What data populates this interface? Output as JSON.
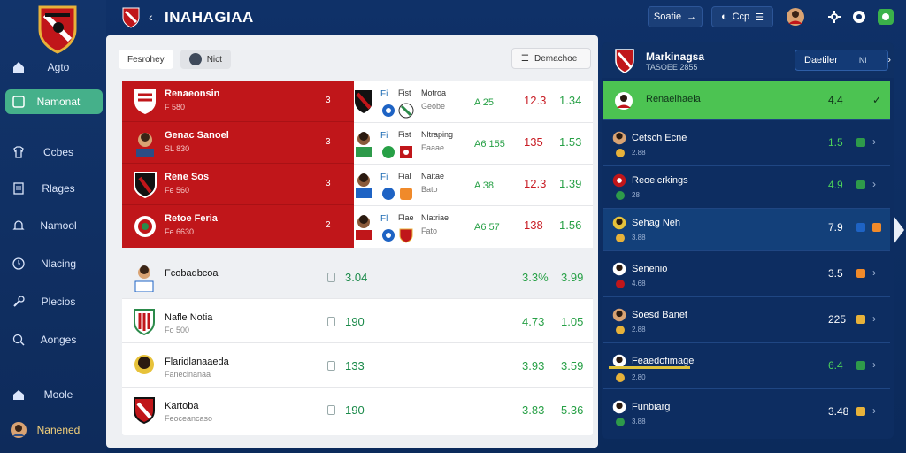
{
  "app": {
    "title": "INAHAGIAA",
    "brand": "Agto"
  },
  "sidebar": {
    "items": [
      {
        "label": "Agto",
        "icon": "home-icon"
      },
      {
        "label": "Namonat",
        "icon": "chart-icon",
        "active": true
      },
      {
        "label": "Ccbes",
        "icon": "shirt-icon"
      },
      {
        "label": "Rlages",
        "icon": "doc-icon"
      },
      {
        "label": "Namool",
        "icon": "bell-icon"
      },
      {
        "label": "Nlacing",
        "icon": "clock-icon"
      },
      {
        "label": "Plecios",
        "icon": "wrench-icon"
      },
      {
        "label": "Aonges",
        "icon": "search-icon"
      },
      {
        "label": "Moole",
        "icon": "house-icon"
      },
      {
        "label": "Nanened",
        "icon": "avatar-icon"
      }
    ]
  },
  "topbar": {
    "search_label": "Soatie",
    "filter_label": "Ccp"
  },
  "main": {
    "filter_a": "Fesrohey",
    "filter_b": "Nict",
    "filter_c": "Demachoe",
    "red_rows": [
      {
        "name": "Renaeonsin",
        "sub": "F 580",
        "num": "3"
      },
      {
        "name": "Genac Sanoel",
        "sub": "SL 830",
        "num": "3"
      },
      {
        "name": "Rene Sos",
        "sub": "Fe 560",
        "num": "3"
      },
      {
        "name": "Retoe Feria",
        "sub": "Fe 6630",
        "num": "2"
      }
    ],
    "mid_rows": [
      {
        "a": "Fi",
        "b": "Fist",
        "c": "Motroa",
        "d": "Geobe",
        "v1": "A 25",
        "v2": "12.3",
        "v3": "1.34"
      },
      {
        "a": "Fi",
        "b": "Fist",
        "c": "Nltraping",
        "d": "Eaaae",
        "v1": "A6 155",
        "v2": "135",
        "v3": "1.53"
      },
      {
        "a": "Fi",
        "b": "Fial",
        "c": "Naitae",
        "d": "Bato",
        "v1": "A 38",
        "v2": "12.3",
        "v3": "1.39"
      },
      {
        "a": "Fl",
        "b": "Flae",
        "c": "Nlatriae",
        "d": "Fato",
        "v1": "A6 57",
        "v2": "138",
        "v3": "1.56"
      }
    ],
    "lower_rows": [
      {
        "name": "Fcobadbcoa",
        "sub": "",
        "c1": "3.04",
        "c2": "3.3%",
        "c3": "3.99"
      },
      {
        "name": "Nafle Notia",
        "sub": "Fo 500",
        "c1": "190",
        "c2": "4.73",
        "c3": "1.05"
      },
      {
        "name": "Flaridlanaaeda",
        "sub": "Fanecinanaa",
        "c1": "133",
        "c2": "3.93",
        "c3": "3.59"
      },
      {
        "name": "Kartoba",
        "sub": "Feoceancaso",
        "c1": "190",
        "c2": "3.83",
        "c3": "5.36"
      }
    ]
  },
  "rpanel": {
    "title": "Markinagsa",
    "subtitle": "TASOEE 2855",
    "button": "Daetiler",
    "button_b": "Ni",
    "rows": [
      {
        "name": "Renaeihaeia",
        "sub": "",
        "val": "4.4",
        "highlight": true,
        "check": "✓"
      },
      {
        "name": "Cetsch Ecne",
        "sub": "2.88",
        "val": "1.5"
      },
      {
        "name": "Reoeicrkings",
        "sub": "28",
        "val": "4.9"
      },
      {
        "name": "Sehag Neh",
        "sub": "3.88",
        "val": "7.9"
      },
      {
        "name": "Senenio",
        "sub": "4.68",
        "val": "3.5"
      },
      {
        "name": "Soesd Banet",
        "sub": "2.88",
        "val": "225"
      },
      {
        "name": "Feaedofimage",
        "sub": "2.80",
        "val": "6.4"
      },
      {
        "name": "Funbiarg",
        "sub": "3.88",
        "val": "3.48"
      }
    ]
  }
}
